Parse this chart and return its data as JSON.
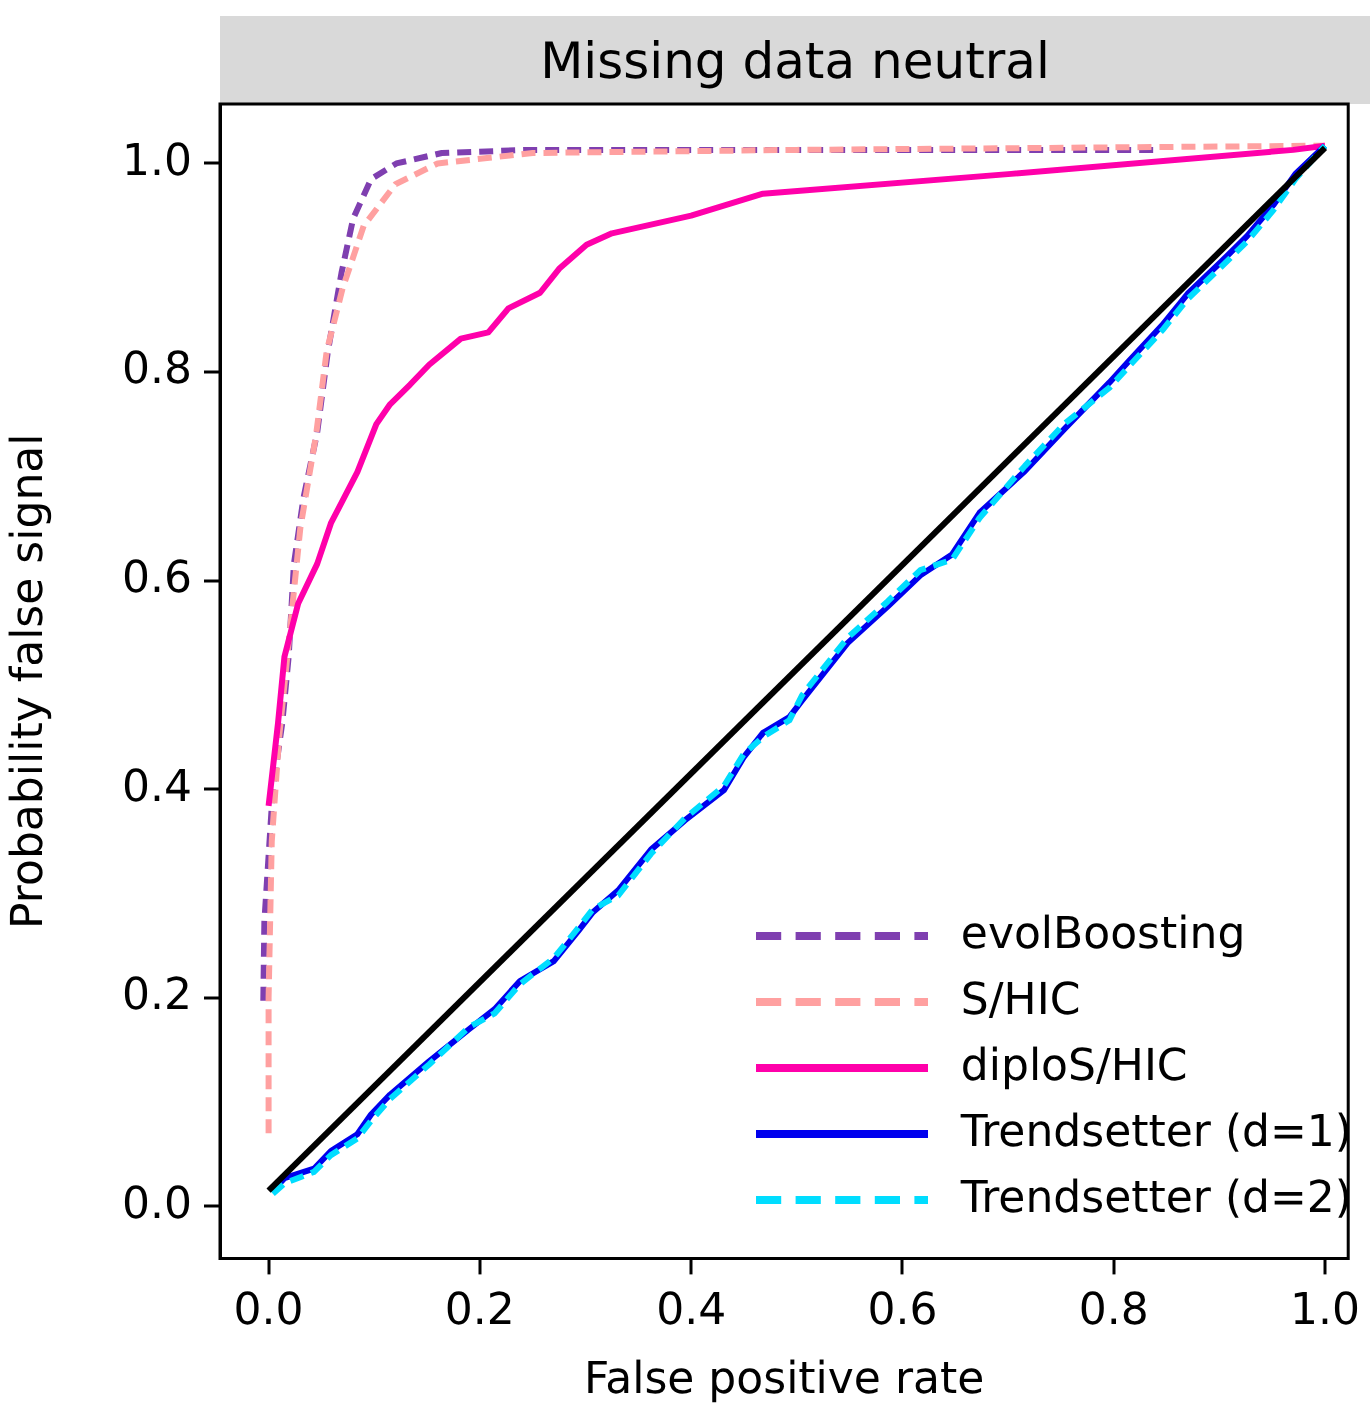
{
  "chart_data": {
    "type": "line",
    "title": "Missing data neutral",
    "xlabel": "False positive rate",
    "ylabel": "Probability false signal",
    "xlim": [
      -0.046,
      1.022
    ],
    "ylim": [
      -0.05,
      1.057
    ],
    "xticks": [
      {
        "value": 0,
        "label": "0.0"
      },
      {
        "value": 0.2,
        "label": "0.2"
      },
      {
        "value": 0.4,
        "label": "0.4"
      },
      {
        "value": 0.6,
        "label": "0.6"
      },
      {
        "value": 0.8,
        "label": "0.8"
      },
      {
        "value": 1,
        "label": "1.0"
      }
    ],
    "yticks": [
      {
        "value": 0,
        "label": "0.0"
      },
      {
        "value": 0.2,
        "label": "0.2"
      },
      {
        "value": 0.4,
        "label": "0.4"
      },
      {
        "value": 0.6,
        "label": "0.6"
      },
      {
        "value": 0.8,
        "label": "0.8"
      },
      {
        "value": 1,
        "label": "1.0"
      }
    ],
    "grid": false,
    "legend": "bottom right",
    "marker": "none",
    "series": [
      {
        "name": "evolBoosting",
        "color": "#7f3fb0",
        "line_style": "dashed",
        "x": [
          -0.005,
          -0.004,
          0,
          0.004,
          0.013,
          0.019,
          0.024,
          0.033,
          0.046,
          0.056,
          0.069,
          0.08,
          0.097,
          0.121,
          0.164,
          0.245,
          0.5,
          0.84
        ],
        "values": [
          0.197,
          0.273,
          0.336,
          0.399,
          0.464,
          0.527,
          0.616,
          0.679,
          0.742,
          0.819,
          0.895,
          0.947,
          0.985,
          1.0,
          1.01,
          1.013,
          1.013,
          1.013
        ]
      },
      {
        "name": "S/HIC",
        "color": "#ffa0a0",
        "line_style": "dashed",
        "x": [
          0,
          0,
          0.003,
          0.01,
          0.02,
          0.03,
          0.045,
          0.055,
          0.07,
          0.09,
          0.12,
          0.16,
          0.25,
          0.5,
          1.0
        ],
        "values": [
          0.07,
          0.2,
          0.35,
          0.45,
          0.55,
          0.65,
          0.74,
          0.82,
          0.88,
          0.94,
          0.98,
          1.0,
          1.01,
          1.013,
          1.017
        ]
      },
      {
        "name": "diploS/HIC",
        "color": "#ff00aa",
        "line_style": "solid",
        "x": [
          0,
          0.009,
          0.015,
          0.028,
          0.046,
          0.059,
          0.084,
          0.102,
          0.115,
          0.134,
          0.152,
          0.182,
          0.208,
          0.227,
          0.257,
          0.275,
          0.301,
          0.325,
          0.4,
          0.468,
          0.703,
          0.97,
          1.0
        ],
        "values": [
          0.384,
          0.464,
          0.527,
          0.578,
          0.616,
          0.655,
          0.704,
          0.75,
          0.769,
          0.788,
          0.807,
          0.832,
          0.838,
          0.861,
          0.876,
          0.899,
          0.922,
          0.933,
          0.95,
          0.971,
          0.99,
          1.013,
          1.017
        ]
      },
      {
        "name": "Trendsetter (d=1)",
        "color": "#0000ee",
        "line_style": "solid",
        "x": [
          0.004,
          0.015,
          0.043,
          0.059,
          0.084,
          0.097,
          0.115,
          0.152,
          0.19,
          0.214,
          0.238,
          0.27,
          0.294,
          0.307,
          0.331,
          0.362,
          0.394,
          0.431,
          0.45,
          0.468,
          0.493,
          0.505,
          0.548,
          0.586,
          0.617,
          0.647,
          0.673,
          0.716,
          0.753,
          0.796,
          0.814,
          0.846,
          0.87,
          0.901,
          0.926,
          0.951,
          0.972,
          1.0
        ],
        "values": [
          0.015,
          0.027,
          0.036,
          0.053,
          0.069,
          0.088,
          0.107,
          0.139,
          0.17,
          0.189,
          0.216,
          0.235,
          0.265,
          0.282,
          0.303,
          0.342,
          0.37,
          0.399,
          0.431,
          0.454,
          0.469,
          0.485,
          0.54,
          0.575,
          0.605,
          0.625,
          0.665,
          0.705,
          0.745,
          0.79,
          0.81,
          0.845,
          0.875,
          0.905,
          0.93,
          0.96,
          0.99,
          1.017
        ]
      },
      {
        "name": "Trendsetter (d=2)",
        "color": "#00ddff",
        "line_style": "dashed",
        "x": [
          0.004,
          0.015,
          0.043,
          0.059,
          0.084,
          0.097,
          0.115,
          0.152,
          0.19,
          0.214,
          0.238,
          0.27,
          0.294,
          0.307,
          0.331,
          0.362,
          0.394,
          0.431,
          0.45,
          0.468,
          0.493,
          0.505,
          0.548,
          0.586,
          0.617,
          0.647,
          0.673,
          0.716,
          0.753,
          0.796,
          0.814,
          0.846,
          0.87,
          0.901,
          0.926,
          0.951,
          0.972,
          1.0
        ],
        "values": [
          0.012,
          0.022,
          0.033,
          0.049,
          0.065,
          0.082,
          0.103,
          0.136,
          0.172,
          0.185,
          0.213,
          0.238,
          0.268,
          0.285,
          0.298,
          0.338,
          0.372,
          0.403,
          0.434,
          0.45,
          0.466,
          0.49,
          0.545,
          0.58,
          0.61,
          0.62,
          0.66,
          0.71,
          0.75,
          0.785,
          0.805,
          0.84,
          0.87,
          0.9,
          0.925,
          0.955,
          0.985,
          1.017
        ]
      },
      {
        "color": "#000000",
        "line_style": "solid",
        "x": [
          0,
          1
        ],
        "values": [
          0.015,
          1.015
        ]
      }
    ]
  }
}
